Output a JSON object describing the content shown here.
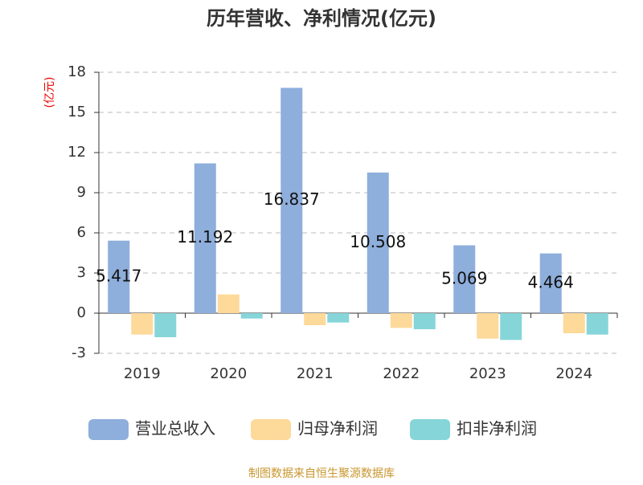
{
  "chart_data": {
    "type": "bar",
    "title": "历年营收、净利情况(亿元)",
    "y_label": "(亿元)",
    "categories": [
      "2019",
      "2020",
      "2021",
      "2022",
      "2023",
      "2024"
    ],
    "series": [
      {
        "name": "营业总收入",
        "color": "#8eaedc",
        "values": [
          5.417,
          11.192,
          16.837,
          10.508,
          5.069,
          4.464
        ],
        "show_labels": true
      },
      {
        "name": "归母净利润",
        "color": "#fdd99a",
        "values": [
          -1.6,
          1.4,
          -0.9,
          -1.1,
          -1.9,
          -1.5
        ]
      },
      {
        "name": "扣非净利润",
        "color": "#86d5d8",
        "values": [
          -1.8,
          -0.4,
          -0.7,
          -1.2,
          -2.0,
          -1.6
        ]
      }
    ],
    "ylim": [
      -3,
      18
    ],
    "yticks": [
      -3,
      0,
      3,
      6,
      9,
      12,
      15,
      18
    ],
    "grid": true,
    "source": "制图数据来自恒生聚源数据库"
  }
}
